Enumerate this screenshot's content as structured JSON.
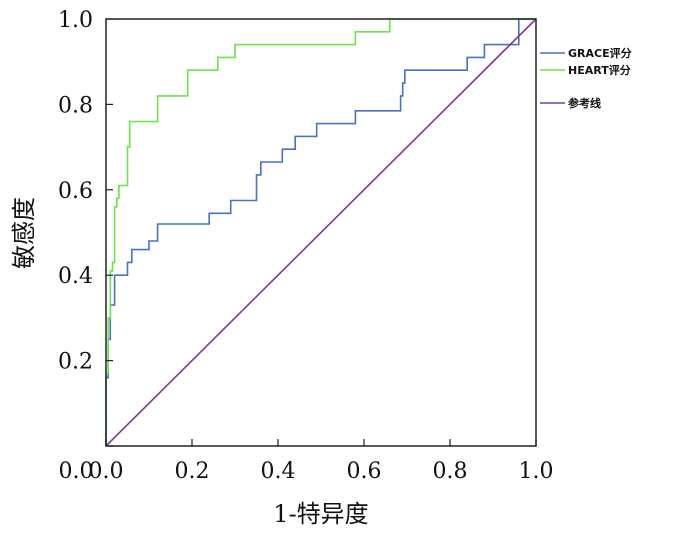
{
  "chart_data": {
    "type": "line",
    "title": "",
    "xlabel": "1-特异度",
    "ylabel": "敏感度",
    "xlim": [
      0,
      1
    ],
    "ylim": [
      0,
      1
    ],
    "x_ticks": [
      "0.0",
      "0.2",
      "0.4",
      "0.6",
      "0.8",
      "1.0"
    ],
    "y_ticks": [
      "0.0",
      "0.2",
      "0.4",
      "0.6",
      "0.8",
      "1.0"
    ],
    "grid": false,
    "legend_position": "right",
    "series": [
      {
        "name": "GRACE评分",
        "color": "#4a72c0",
        "points": [
          [
            0,
            0
          ],
          [
            0,
            0.16
          ],
          [
            0.005,
            0.16
          ],
          [
            0.005,
            0.25
          ],
          [
            0.01,
            0.25
          ],
          [
            0.01,
            0.33
          ],
          [
            0.02,
            0.33
          ],
          [
            0.02,
            0.4
          ],
          [
            0.05,
            0.4
          ],
          [
            0.05,
            0.43
          ],
          [
            0.06,
            0.43
          ],
          [
            0.06,
            0.46
          ],
          [
            0.1,
            0.46
          ],
          [
            0.1,
            0.48
          ],
          [
            0.12,
            0.48
          ],
          [
            0.12,
            0.52
          ],
          [
            0.24,
            0.52
          ],
          [
            0.24,
            0.545
          ],
          [
            0.29,
            0.545
          ],
          [
            0.29,
            0.575
          ],
          [
            0.35,
            0.575
          ],
          [
            0.35,
            0.635
          ],
          [
            0.36,
            0.635
          ],
          [
            0.36,
            0.665
          ],
          [
            0.41,
            0.665
          ],
          [
            0.41,
            0.695
          ],
          [
            0.44,
            0.695
          ],
          [
            0.44,
            0.725
          ],
          [
            0.49,
            0.725
          ],
          [
            0.49,
            0.755
          ],
          [
            0.58,
            0.755
          ],
          [
            0.58,
            0.785
          ],
          [
            0.685,
            0.785
          ],
          [
            0.685,
            0.82
          ],
          [
            0.69,
            0.82
          ],
          [
            0.69,
            0.85
          ],
          [
            0.695,
            0.85
          ],
          [
            0.695,
            0.88
          ],
          [
            0.84,
            0.88
          ],
          [
            0.84,
            0.91
          ],
          [
            0.88,
            0.91
          ],
          [
            0.88,
            0.94
          ],
          [
            0.96,
            0.94
          ],
          [
            0.96,
            1.0
          ],
          [
            1.0,
            1.0
          ]
        ]
      },
      {
        "name": "HEART评分",
        "color": "#6be34a",
        "points": [
          [
            0,
            0
          ],
          [
            0,
            0.17
          ],
          [
            0.005,
            0.17
          ],
          [
            0.005,
            0.3
          ],
          [
            0.01,
            0.3
          ],
          [
            0.01,
            0.41
          ],
          [
            0.015,
            0.41
          ],
          [
            0.015,
            0.43
          ],
          [
            0.02,
            0.43
          ],
          [
            0.02,
            0.56
          ],
          [
            0.025,
            0.56
          ],
          [
            0.025,
            0.58
          ],
          [
            0.03,
            0.58
          ],
          [
            0.03,
            0.61
          ],
          [
            0.05,
            0.61
          ],
          [
            0.05,
            0.7
          ],
          [
            0.055,
            0.7
          ],
          [
            0.055,
            0.76
          ],
          [
            0.12,
            0.76
          ],
          [
            0.12,
            0.82
          ],
          [
            0.19,
            0.82
          ],
          [
            0.19,
            0.88
          ],
          [
            0.26,
            0.88
          ],
          [
            0.26,
            0.91
          ],
          [
            0.3,
            0.91
          ],
          [
            0.3,
            0.94
          ],
          [
            0.58,
            0.94
          ],
          [
            0.58,
            0.97
          ],
          [
            0.66,
            0.97
          ],
          [
            0.66,
            1.0
          ],
          [
            1.0,
            1.0
          ]
        ]
      },
      {
        "name": "参考线",
        "color": "#7a3a9a",
        "points": [
          [
            0,
            0
          ],
          [
            1,
            1
          ]
        ]
      }
    ]
  }
}
